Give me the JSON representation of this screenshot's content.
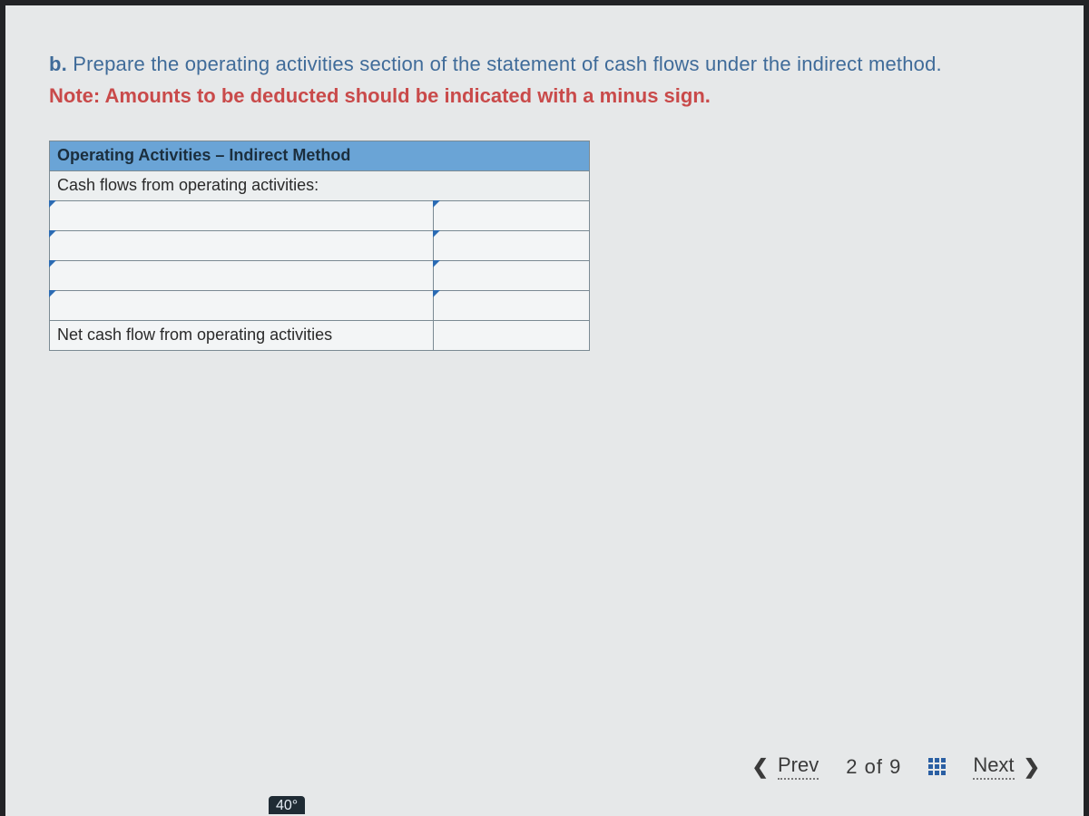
{
  "question": {
    "part": "b.",
    "text": "Prepare the operating activities section of the statement of cash flows under the indirect method."
  },
  "note": "Note: Amounts to be deducted should be indicated with a minus sign.",
  "table": {
    "header": "Operating Activities – Indirect Method",
    "subheader": "Cash flows from operating activities:",
    "input_row_count": 4,
    "footer": "Net cash flow from operating activities",
    "header_bg": "#6aa4d6",
    "border_color": "#7b8a93"
  },
  "nav": {
    "prev": "Prev",
    "next": "Next",
    "current": 2,
    "total": 9
  },
  "taskbar": {
    "temp": "40°"
  }
}
